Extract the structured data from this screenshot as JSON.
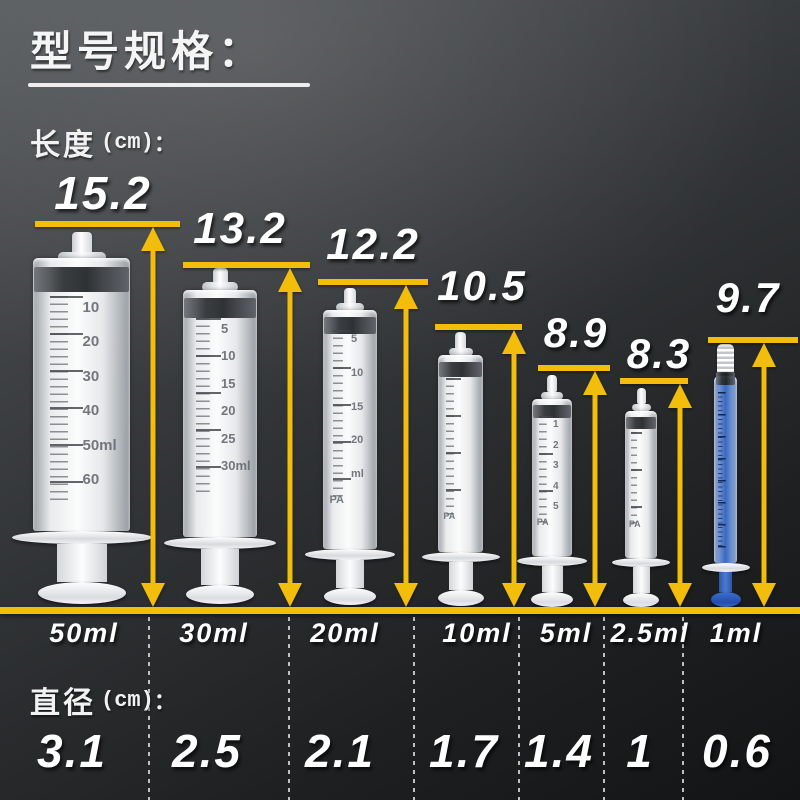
{
  "title": "型号规格：",
  "length_section": {
    "label": "长度",
    "unit": "(cm)",
    "colon": "："
  },
  "diameter_section": {
    "label": "直径",
    "unit": "(cm)",
    "colon": "："
  },
  "colors": {
    "accent_yellow": "#f2bd0b",
    "plunger_blue": "#2f63c0",
    "text_white": "#ffffff"
  },
  "syringes": [
    {
      "volume": "50ml",
      "length_cm": "15.2",
      "diameter_cm": "3.1",
      "scale_marks": [
        "10",
        "20",
        "30",
        "40",
        "50ml",
        "60"
      ]
    },
    {
      "volume": "30ml",
      "length_cm": "13.2",
      "diameter_cm": "2.5",
      "scale_marks": [
        "5",
        "10",
        "15",
        "20",
        "25",
        "30ml"
      ]
    },
    {
      "volume": "20ml",
      "length_cm": "12.2",
      "diameter_cm": "2.1",
      "scale_marks": [
        "5",
        "10",
        "15",
        "20",
        "ml"
      ],
      "brand_mark": "PA"
    },
    {
      "volume": "10ml",
      "length_cm": "10.5",
      "diameter_cm": "1.7",
      "scale_marks": [],
      "brand_mark": "PA"
    },
    {
      "volume": "5ml",
      "length_cm": "8.9",
      "diameter_cm": "1.4",
      "scale_marks": [
        "1",
        "2",
        "3",
        "4",
        "5"
      ],
      "brand_mark": "PA"
    },
    {
      "volume": "2.5ml",
      "length_cm": "8.3",
      "diameter_cm": "1",
      "scale_marks": [],
      "brand_mark": "PA"
    },
    {
      "volume": "1ml",
      "length_cm": "9.7",
      "diameter_cm": "0.6",
      "scale_marks": [],
      "plunger_color": "blue"
    }
  ]
}
